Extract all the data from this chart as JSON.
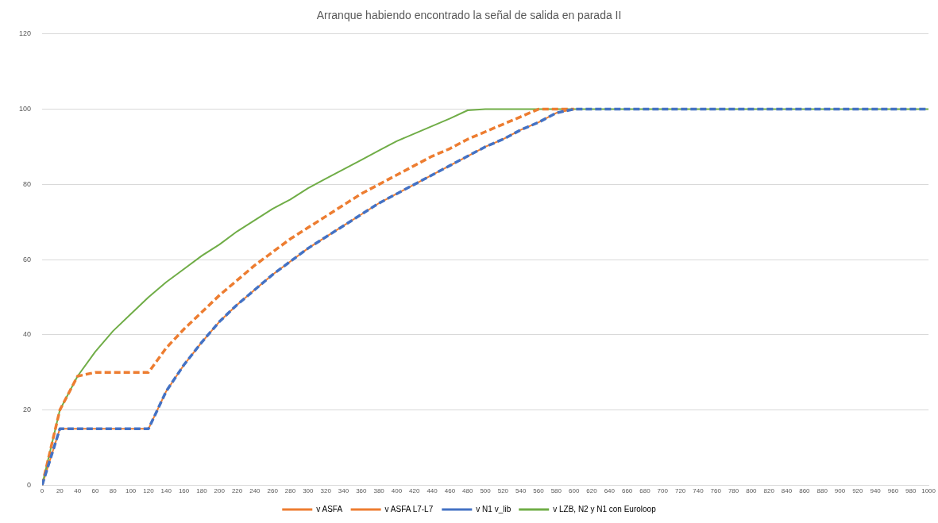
{
  "chart_data": {
    "type": "line",
    "title": "Arranque habiendo encontrado la señal de salida en parada II",
    "x": [
      0,
      20,
      40,
      60,
      80,
      100,
      120,
      140,
      160,
      180,
      200,
      220,
      240,
      260,
      280,
      300,
      320,
      340,
      360,
      380,
      400,
      420,
      440,
      460,
      480,
      500,
      520,
      540,
      560,
      580,
      600,
      620,
      640,
      660,
      680,
      700,
      720,
      740,
      760,
      780,
      800,
      820,
      840,
      860,
      880,
      900,
      920,
      940,
      960,
      980,
      1000
    ],
    "series": [
      {
        "name": "v ASFA",
        "color": "#ed7d31",
        "line_style": "dashed",
        "values": [
          0,
          20,
          29,
          30,
          30,
          30,
          30,
          36.5,
          41.5,
          46,
          50.5,
          54.5,
          58.5,
          62,
          65.5,
          68.5,
          71.5,
          74.5,
          77.5,
          80,
          82.5,
          85,
          87.5,
          89.5,
          92,
          94,
          96,
          98,
          100,
          100,
          100,
          null,
          null,
          null,
          null,
          null,
          null,
          null,
          null,
          null,
          null,
          null,
          null,
          null,
          null,
          null,
          null,
          null,
          null,
          null,
          null
        ]
      },
      {
        "name": "v ASFA L7-L7",
        "color": "#ed7d31",
        "line_style": "solid",
        "values": [
          0,
          15,
          15,
          15,
          15,
          15,
          15,
          25,
          32,
          38,
          43.5,
          48,
          52,
          56,
          59.5,
          63,
          66,
          69,
          72,
          75,
          77.5,
          80,
          82.5,
          85,
          87.5,
          90,
          92,
          94.5,
          96.5,
          99,
          100,
          null,
          null,
          null,
          null,
          null,
          null,
          null,
          null,
          null,
          null,
          null,
          null,
          null,
          null,
          null,
          null,
          null,
          null,
          null,
          null
        ]
      },
      {
        "name": "v N1 v_lib",
        "color": "#4472c4",
        "line_style": "dashed",
        "values": [
          0,
          15,
          15,
          15,
          15,
          15,
          15,
          25,
          32,
          38,
          43.5,
          48,
          52,
          56,
          59.5,
          63,
          66,
          69,
          72,
          75,
          77.5,
          80,
          82.5,
          85,
          87.5,
          90,
          92,
          94.5,
          96.5,
          99,
          100,
          100,
          100,
          100,
          100,
          100,
          100,
          100,
          100,
          100,
          100,
          100,
          100,
          100,
          100,
          100,
          100,
          100,
          100,
          100,
          100
        ]
      },
      {
        "name": "v LZB, N2 y N1 con Euroloop",
        "color": "#70ad47",
        "line_style": "solid",
        "values": [
          0,
          20,
          29,
          35.5,
          41,
          45.5,
          50,
          54,
          57.5,
          61,
          64,
          67.5,
          70.5,
          73.5,
          76,
          79,
          81.5,
          84,
          86.5,
          89,
          91.5,
          93.5,
          95.5,
          97.5,
          99.7,
          100,
          100,
          100,
          100,
          100,
          100,
          100,
          100,
          100,
          100,
          100,
          100,
          100,
          100,
          100,
          100,
          100,
          100,
          100,
          100,
          100,
          100,
          100,
          100,
          100,
          100
        ]
      }
    ],
    "xlim": [
      0,
      1000
    ],
    "xticks": [
      0,
      20,
      40,
      60,
      80,
      100,
      120,
      140,
      160,
      180,
      200,
      220,
      240,
      260,
      280,
      300,
      320,
      340,
      360,
      380,
      400,
      420,
      440,
      460,
      480,
      500,
      520,
      540,
      560,
      580,
      600,
      620,
      640,
      660,
      680,
      700,
      720,
      740,
      760,
      780,
      800,
      820,
      840,
      860,
      880,
      900,
      920,
      940,
      960,
      980,
      1000
    ],
    "ylim": [
      0,
      120
    ],
    "yticks": [
      0,
      20,
      40,
      60,
      80,
      100,
      120
    ],
    "grid": "y",
    "legend": "bottom",
    "marker": "none"
  }
}
